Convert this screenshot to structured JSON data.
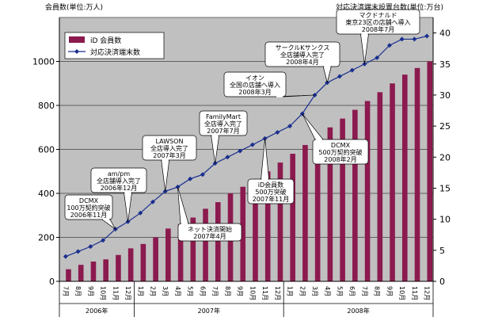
{
  "chart_data": {
    "type": "bar",
    "left_axis_title": "会員数(単位:万人)",
    "right_axis_title": "対応決済端末設置台数(単位:万台)",
    "y_left_ticks": [
      "0",
      "200",
      "400",
      "600",
      "800",
      "1000"
    ],
    "y_right_ticks": [
      "0",
      "5",
      "10",
      "15",
      "20",
      "25",
      "30",
      "35",
      "40"
    ],
    "ylim_left": [
      0,
      1200
    ],
    "ylim_right": [
      0,
      42.5
    ],
    "categories": [
      "7月",
      "8月",
      "9月",
      "10月",
      "11月",
      "12月",
      "1月",
      "2月",
      "3月",
      "4月",
      "5月",
      "6月",
      "7月",
      "8月",
      "9月",
      "10月",
      "11月",
      "12月",
      "1月",
      "2月",
      "3月",
      "4月",
      "5月",
      "6月",
      "7月",
      "8月",
      "9月",
      "10月",
      "11月",
      "12月"
    ],
    "year_labels": [
      {
        "label": "2006年",
        "start": 0,
        "end": 5
      },
      {
        "label": "2007年",
        "start": 6,
        "end": 17
      },
      {
        "label": "2008年",
        "start": 18,
        "end": 29
      }
    ],
    "series": [
      {
        "name": "iD 会員数",
        "kind": "bar",
        "axis": "left",
        "color": "#8b1a4e",
        "values": [
          55,
          75,
          90,
          100,
          120,
          150,
          170,
          200,
          240,
          260,
          290,
          330,
          360,
          400,
          430,
          460,
          500,
          540,
          580,
          620,
          660,
          700,
          740,
          780,
          820,
          860,
          900,
          940,
          970,
          1000
        ]
      },
      {
        "name": "対応決済端末数",
        "kind": "line",
        "axis": "right",
        "color": "#1a2f8f",
        "values": [
          4.0,
          4.8,
          5.6,
          6.6,
          8.4,
          9.6,
          11.0,
          12.8,
          14.5,
          15.2,
          16.5,
          17.2,
          19.0,
          20.0,
          21.0,
          22.0,
          23.0,
          24.0,
          25.0,
          27.0,
          30.0,
          32.0,
          33.0,
          34.0,
          35.0,
          36.0,
          38.0,
          39.0,
          39.0,
          39.5
        ]
      }
    ],
    "annotations": [
      {
        "lines": [
          "DCMX",
          "100万契約突破",
          "2006年11月"
        ],
        "index": 4
      },
      {
        "lines": [
          "am/pm",
          "全店舗導入完了",
          "2006年12月"
        ],
        "index": 5
      },
      {
        "lines": [
          "LAWSON",
          "全店導入完了",
          "2007年3月"
        ],
        "index": 8
      },
      {
        "lines": [
          "ネット決済開始",
          "2007年4月"
        ],
        "index": 9
      },
      {
        "lines": [
          "FamilyMart",
          "全店導入完了",
          "2007年7月"
        ],
        "index": 12
      },
      {
        "lines": [
          "iD会員数",
          "500万突破",
          "2007年11月"
        ],
        "index": 16
      },
      {
        "lines": [
          "DCMX",
          "500万契約突破",
          "2008年2月"
        ],
        "index": 19
      },
      {
        "lines": [
          "イオン",
          "全国の店舗へ導入",
          "2008年3月"
        ],
        "index": 20
      },
      {
        "lines": [
          "サークルKサンクス",
          "全店舗導入完了",
          "2008年4月"
        ],
        "index": 21
      },
      {
        "lines": [
          "マクドナルド",
          "東京23区の店舗へ導入",
          "2008年7月"
        ],
        "index": 24
      }
    ],
    "colors": {
      "plot_background": "#c0c0c0",
      "bar": "#8b1a4e",
      "line": "#1a2f8f"
    }
  }
}
